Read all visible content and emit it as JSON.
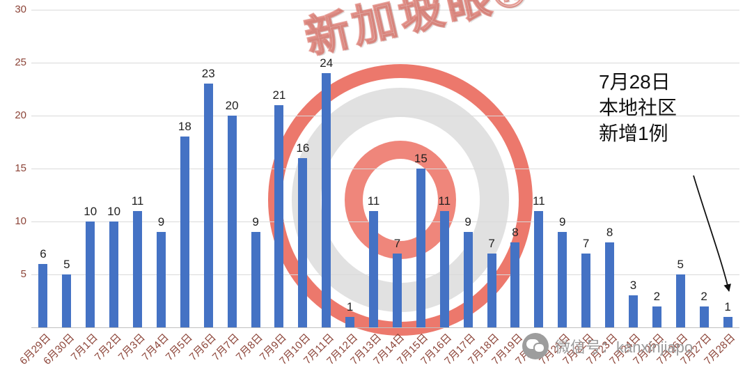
{
  "chart_data": {
    "type": "bar",
    "title": "",
    "xlabel": "",
    "ylabel": "",
    "categories": [
      "6月29日",
      "6月30日",
      "7月1日",
      "7月2日",
      "7月3日",
      "7月4日",
      "7月5日",
      "7月6日",
      "7月7日",
      "7月8日",
      "7月9日",
      "7月10日",
      "7月11日",
      "7月12日",
      "7月13日",
      "7月14日",
      "7月15日",
      "7月16日",
      "7月17日",
      "7月18日",
      "7月19日",
      "7月20日",
      "7月21日",
      "7月22日",
      "7月23日",
      "7月24日",
      "7月25日",
      "7月26日",
      "7月27日",
      "7月28日"
    ],
    "values": [
      6,
      5,
      10,
      10,
      11,
      9,
      18,
      23,
      20,
      9,
      21,
      16,
      24,
      1,
      11,
      7,
      15,
      11,
      9,
      7,
      8,
      11,
      9,
      7,
      8,
      3,
      2,
      5,
      2,
      1
    ],
    "ylim": [
      0,
      30
    ],
    "yticks": [
      5,
      10,
      15,
      20,
      25,
      30
    ],
    "grid": true,
    "legend": "none",
    "bar_color": "#4472C4",
    "value_label_color": "#1f1f1f",
    "axis_label_color": "#8c4438"
  },
  "annotation": {
    "lines": [
      "7月28日",
      "本地社区",
      "新增1例"
    ]
  },
  "watermarks": {
    "brand": "新加坡眼®",
    "wechat": "微信号：kanxinjiapo"
  }
}
